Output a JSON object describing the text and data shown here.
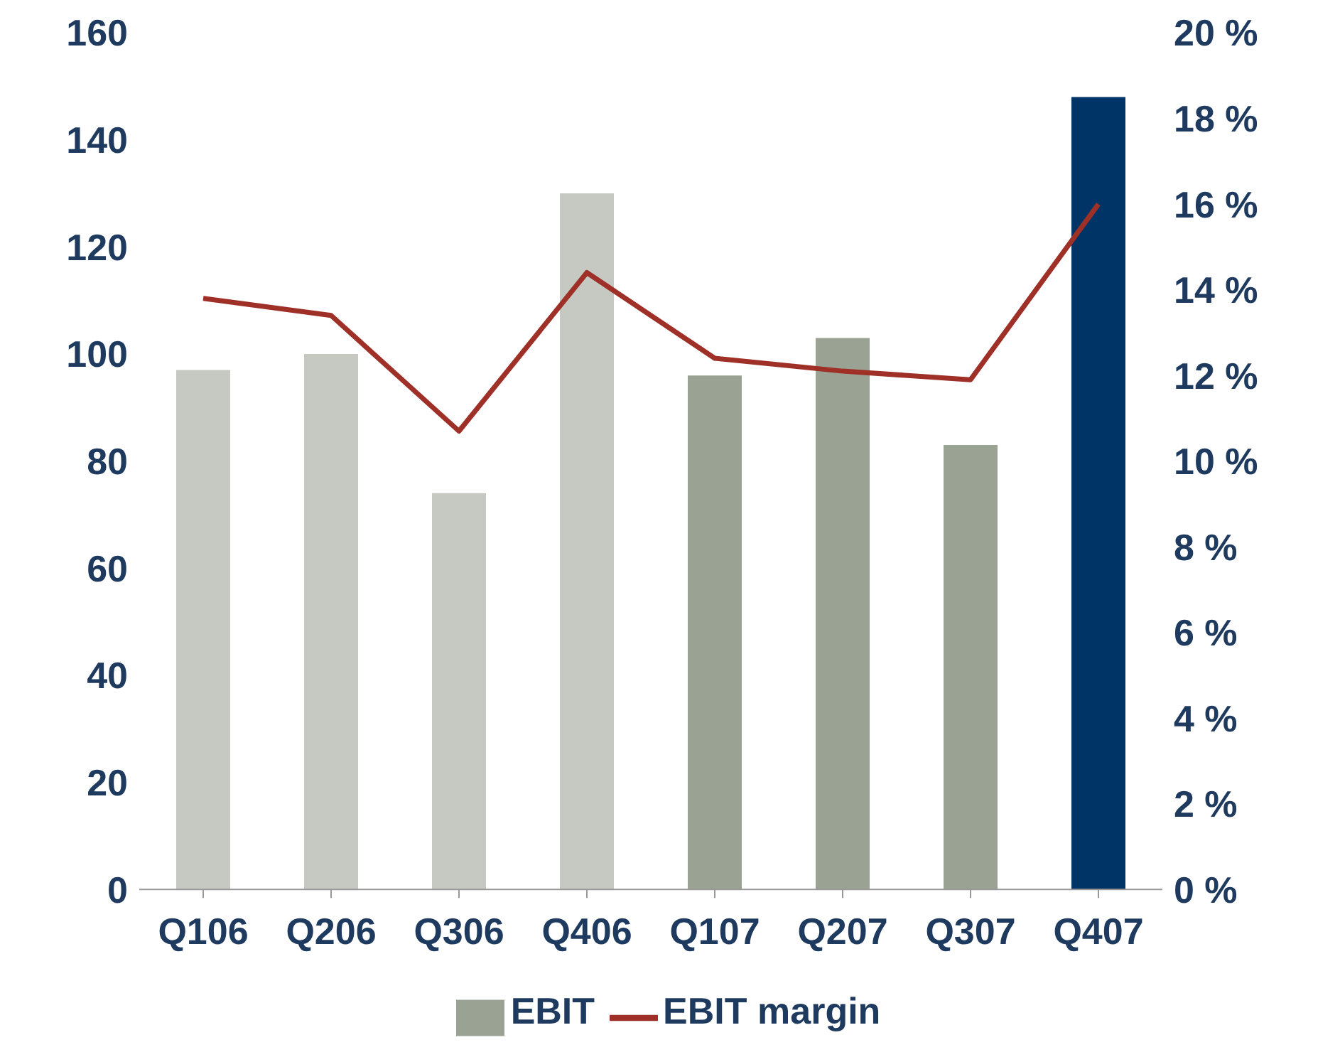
{
  "chart_data": {
    "type": "bar",
    "categories": [
      "Q106",
      "Q206",
      "Q306",
      "Q406",
      "Q107",
      "Q207",
      "Q307",
      "Q407"
    ],
    "series": [
      {
        "name": "EBIT",
        "color": "#9aa293",
        "colors": [
          "#c5c9c1",
          "#c5c9c1",
          "#c5c9c1",
          "#c5c9c1",
          "#9aa293",
          "#9aa293",
          "#9aa293",
          "#003366"
        ],
        "values": [
          97,
          100,
          74,
          130,
          96,
          103,
          83,
          148
        ]
      },
      {
        "name": "EBIT margin",
        "type": "line",
        "axis": "y2",
        "color": "#9e3028",
        "values": [
          13.8,
          13.4,
          10.7,
          14.4,
          12.4,
          12.1,
          11.9,
          16.0
        ]
      }
    ],
    "ylim": [
      0,
      160
    ],
    "yticks": [
      0,
      20,
      40,
      60,
      80,
      100,
      120,
      140,
      160
    ],
    "y2lim": [
      0,
      20
    ],
    "y2ticks": [
      {
        "value": 0,
        "label": "0 %"
      },
      {
        "value": 2,
        "label": "2 %"
      },
      {
        "value": 4,
        "label": "4 %"
      },
      {
        "value": 6,
        "label": "6 %"
      },
      {
        "value": 8,
        "label": "8 %"
      },
      {
        "value": 10,
        "label": "10 %"
      },
      {
        "value": 12,
        "label": "12 %"
      },
      {
        "value": 14,
        "label": "14 %"
      },
      {
        "value": 16,
        "label": "16 %"
      },
      {
        "value": 18,
        "label": "18 %"
      },
      {
        "value": 20,
        "label": "20 %"
      }
    ],
    "grid": false,
    "legend": "bottom",
    "marker": "none",
    "line_style": "solid"
  }
}
